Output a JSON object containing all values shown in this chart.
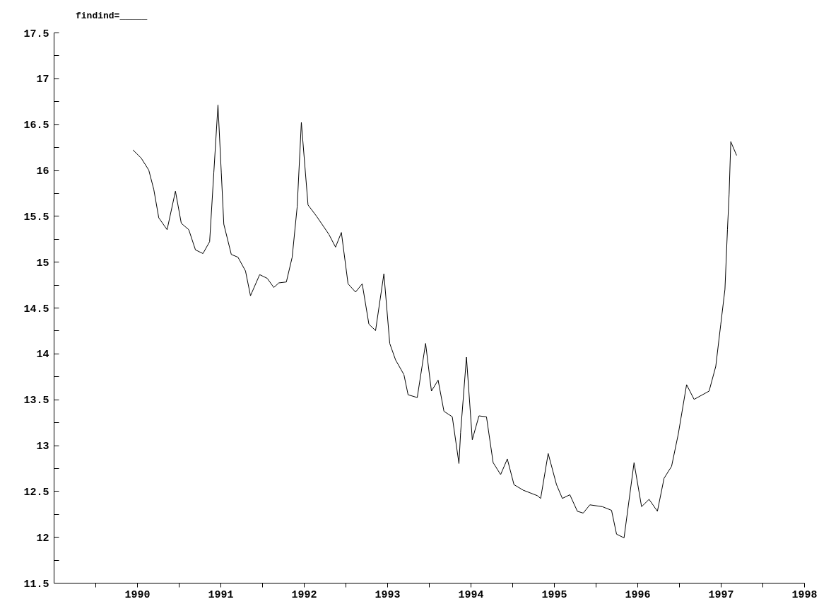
{
  "chart_data": {
    "type": "line",
    "title": "findind=_____",
    "x": [
      1989.95,
      1990.05,
      1990.14,
      1990.2,
      1990.26,
      1990.36,
      1990.46,
      1990.53,
      1990.62,
      1990.7,
      1990.79,
      1990.87,
      1990.92,
      1990.97,
      1991.01,
      1991.04,
      1991.13,
      1991.21,
      1991.3,
      1991.36,
      1991.47,
      1991.56,
      1991.64,
      1991.7,
      1991.79,
      1991.86,
      1991.92,
      1991.97,
      1992.05,
      1992.15,
      1992.3,
      1992.38,
      1992.45,
      1992.53,
      1992.62,
      1992.7,
      1992.78,
      1992.86,
      1992.96,
      1993.03,
      1993.1,
      1993.2,
      1993.25,
      1993.36,
      1993.46,
      1993.53,
      1993.61,
      1993.68,
      1993.78,
      1993.86,
      1993.88,
      1993.95,
      1994.02,
      1994.1,
      1994.19,
      1994.27,
      1994.36,
      1994.44,
      1994.52,
      1994.63,
      1994.8,
      1994.84,
      1994.93,
      1995.03,
      1995.1,
      1995.19,
      1995.28,
      1995.35,
      1995.43,
      1995.58,
      1995.69,
      1995.75,
      1995.84,
      1995.96,
      1996.05,
      1996.14,
      1996.24,
      1996.32,
      1996.41,
      1996.49,
      1996.59,
      1996.68,
      1996.86,
      1996.94,
      1997.0,
      1997.05,
      1997.08,
      1997.1,
      1997.12,
      1997.19
    ],
    "series": [
      {
        "color": "#000000",
        "values": [
          16.22,
          16.13,
          16.0,
          15.79,
          15.48,
          15.35,
          15.77,
          15.42,
          15.35,
          15.13,
          15.09,
          15.22,
          15.97,
          16.71,
          15.97,
          15.41,
          15.08,
          15.05,
          14.9,
          14.63,
          14.86,
          14.82,
          14.72,
          14.77,
          14.78,
          15.05,
          15.6,
          16.52,
          15.62,
          15.5,
          15.3,
          15.16,
          15.32,
          14.76,
          14.67,
          14.76,
          14.32,
          14.25,
          14.87,
          14.11,
          13.93,
          13.77,
          13.55,
          13.52,
          14.11,
          13.59,
          13.71,
          13.37,
          13.31,
          12.8,
          13.14,
          13.96,
          13.06,
          13.32,
          13.31,
          12.81,
          12.68,
          12.85,
          12.57,
          12.51,
          12.45,
          12.42,
          12.91,
          12.57,
          12.42,
          12.46,
          12.28,
          12.26,
          12.35,
          12.33,
          12.29,
          12.03,
          11.99,
          12.81,
          12.33,
          12.41,
          12.28,
          12.64,
          12.77,
          13.12,
          13.66,
          13.5,
          13.59,
          13.86,
          14.32,
          14.7,
          15.35,
          15.74,
          16.31,
          16.16
        ]
      }
    ],
    "xlim": [
      1989,
      1998
    ],
    "xticks": [
      {
        "value": 1989.5,
        "label": null
      },
      1990,
      {
        "value": 1990.5,
        "label": null
      },
      1991,
      {
        "value": 1991.5,
        "label": null
      },
      1992,
      {
        "value": 1992.5,
        "label": null
      },
      1993,
      {
        "value": 1993.5,
        "label": null
      },
      1994,
      {
        "value": 1994.5,
        "label": null
      },
      1995,
      {
        "value": 1995.5,
        "label": null
      },
      1996,
      {
        "value": 1996.5,
        "label": null
      },
      1997,
      {
        "value": 1997.5,
        "label": null
      },
      1998
    ],
    "ylim": [
      11.5,
      17.5
    ],
    "yticks": [
      11.5,
      {
        "value": 11.75,
        "label": null
      },
      12,
      {
        "value": 12.25,
        "label": null
      },
      12.5,
      {
        "value": 12.75,
        "label": null
      },
      13,
      {
        "value": 13.25,
        "label": null
      },
      13.5,
      {
        "value": 13.75,
        "label": null
      },
      14,
      {
        "value": 14.25,
        "label": null
      },
      14.5,
      {
        "value": 14.75,
        "label": null
      },
      15,
      {
        "value": 15.25,
        "label": null
      },
      15.5,
      {
        "value": 15.75,
        "label": null
      },
      16,
      {
        "value": 16.25,
        "label": null
      },
      16.5,
      {
        "value": 16.75,
        "label": null
      },
      17,
      {
        "value": 17.25,
        "label": null
      },
      17.5
    ],
    "grid": false
  }
}
